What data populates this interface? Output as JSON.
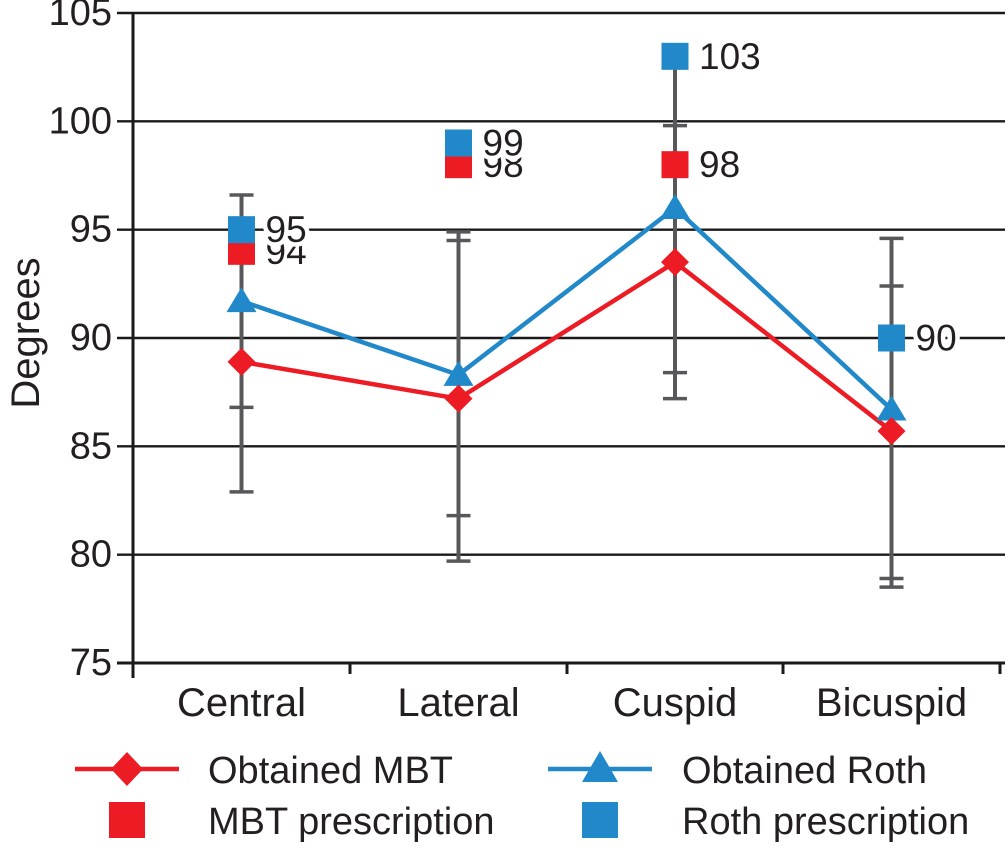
{
  "figure": {
    "ylabel": "Degrees",
    "colors": {
      "red": "#ed1c24",
      "blue": "#2189c9",
      "error_bar": "#58585a",
      "grid": "#1a1a1a",
      "text": "#231f20",
      "background": "#ffffff"
    }
  },
  "chart_data": {
    "type": "line",
    "title": "",
    "xlabel": "",
    "ylabel": "Degrees",
    "ylim": [
      75,
      105
    ],
    "ytick_step": 5,
    "y_ticks": [
      75,
      80,
      85,
      90,
      95,
      100,
      105
    ],
    "grid": true,
    "categories": [
      "Central",
      "Lateral",
      "Cuspid",
      "Bicuspid"
    ],
    "series": [
      {
        "name": "Obtained MBT",
        "kind": "line",
        "marker": "diamond",
        "color": "#ed1c24",
        "values": [
          88.9,
          87.2,
          93.5,
          85.7
        ]
      },
      {
        "name": "Obtained Roth",
        "kind": "line",
        "marker": "triangle",
        "color": "#2189c9",
        "values": [
          91.7,
          88.3,
          96.0,
          86.7
        ]
      },
      {
        "name": "MBT prescription",
        "kind": "points",
        "marker": "square",
        "color": "#ed1c24",
        "values": [
          94,
          98,
          98,
          null
        ],
        "labels": [
          "94",
          "98",
          "98",
          ""
        ]
      },
      {
        "name": "Roth prescription",
        "kind": "points",
        "marker": "square",
        "color": "#2189c9",
        "values": [
          95,
          99,
          103,
          90
        ],
        "labels": [
          "95",
          "99",
          "103",
          "90"
        ]
      }
    ],
    "error_bars": [
      {
        "category": "Central",
        "span": [
          82.9,
          96.6
        ],
        "caps": [
          96.6,
          86.8,
          82.9
        ]
      },
      {
        "category": "Lateral",
        "span": [
          79.7,
          94.9
        ],
        "caps": [
          94.9,
          94.5,
          81.8,
          79.7
        ]
      },
      {
        "category": "Cuspid",
        "span": [
          87.2,
          103.0
        ],
        "caps": [
          99.8,
          88.4,
          87.2
        ]
      },
      {
        "category": "Bicuspid",
        "span": [
          78.5,
          94.6
        ],
        "caps": [
          94.6,
          92.4,
          78.9,
          78.5
        ]
      }
    ],
    "legend_position": "bottom",
    "legend": [
      {
        "label": "Obtained MBT",
        "row": 0,
        "col": 0,
        "glyph": "line-diamond",
        "color": "#ed1c24"
      },
      {
        "label": "Obtained Roth",
        "row": 0,
        "col": 1,
        "glyph": "line-triangle",
        "color": "#2189c9"
      },
      {
        "label": "MBT prescription",
        "row": 1,
        "col": 0,
        "glyph": "square",
        "color": "#ed1c24"
      },
      {
        "label": "Roth prescription",
        "row": 1,
        "col": 1,
        "glyph": "square",
        "color": "#2189c9"
      }
    ]
  }
}
